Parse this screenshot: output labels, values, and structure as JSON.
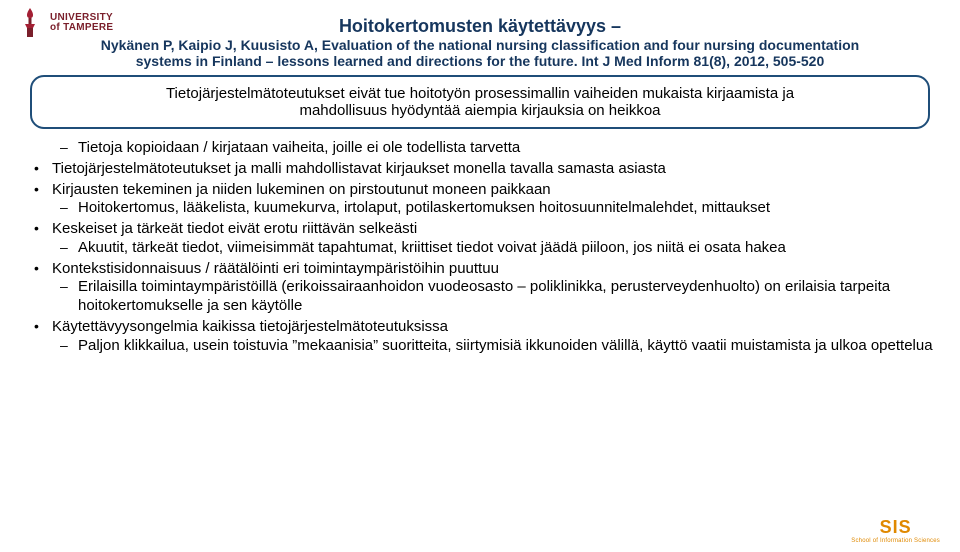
{
  "logo": {
    "line1": "UNIVERSITY",
    "line2": "of TAMPERE",
    "color": "#7a1f2b"
  },
  "header": {
    "color": "#16365d",
    "title_fontsize": 18,
    "cite_fontsize": 14,
    "title": "Hoitokertomusten käytettävyys –",
    "cite_line1": "Nykänen P, Kaipio J, Kuusisto A,  Evaluation of the national nursing classification and four nursing documentation",
    "cite_line2": "systems in Finland – lessons learned and directions for the future. Int J Med Inform 81(8), 2012, 505-520"
  },
  "callout": {
    "border_color": "#1f4e79",
    "fontsize": 15,
    "line1": "Tietojärjestelmätoteutukset eivät tue hoitotyön prosessimallin vaiheiden mukaista kirjaamista ja",
    "line2": "mahdollisuus hyödyntää aiempia kirjauksia on heikkoa"
  },
  "body": {
    "fontsize": 15,
    "items": [
      {
        "type": "sub",
        "text": "Tietoja kopioidaan / kirjataan vaiheita, joille ei ole todellista tarvetta"
      },
      {
        "type": "bullet",
        "text": "Tietojärjestelmätoteutukset ja malli mahdollistavat kirjaukset monella tavalla samasta asiasta"
      },
      {
        "type": "bullet",
        "text": "Kirjausten tekeminen ja niiden lukeminen on pirstoutunut moneen paikkaan"
      },
      {
        "type": "sub",
        "text": "Hoitokertomus, lääkelista, kuumekurva, irtolaput, potilaskertomuksen hoitosuunnitelmalehdet, mittaukset"
      },
      {
        "type": "bullet",
        "text": "Keskeiset ja tärkeät tiedot eivät erotu riittävän selkeästi"
      },
      {
        "type": "sub",
        "text": " Akuutit, tärkeät tiedot, viimeisimmät tapahtumat, kriittiset tiedot voivat jäädä piiloon, jos niitä ei osata hakea"
      },
      {
        "type": "bullet",
        "text": "Kontekstisidonnaisuus / räätälöinti eri toimintaympäristöihin puuttuu"
      },
      {
        "type": "sub",
        "text": " Erilaisilla toimintaympäristöillä (erikoissairaanhoidon vuodeosasto – poliklinikka, perusterveydenhuolto) on erilaisia tarpeita hoitokertomukselle ja sen käytölle"
      },
      {
        "type": "bullet",
        "text": "Käytettävyysongelmia kaikissa tietojärjestelmätoteutuksissa"
      },
      {
        "type": "sub",
        "text": " Paljon klikkailua, usein toistuvia ”mekaanisia” suoritteita, siirtymisiä ikkunoiden välillä,  käyttö vaatii muistamista ja ulkoa opettelua"
      }
    ]
  },
  "footer": {
    "sis": "SIS",
    "tag": "School of Information Sciences",
    "color": "#e08900"
  }
}
